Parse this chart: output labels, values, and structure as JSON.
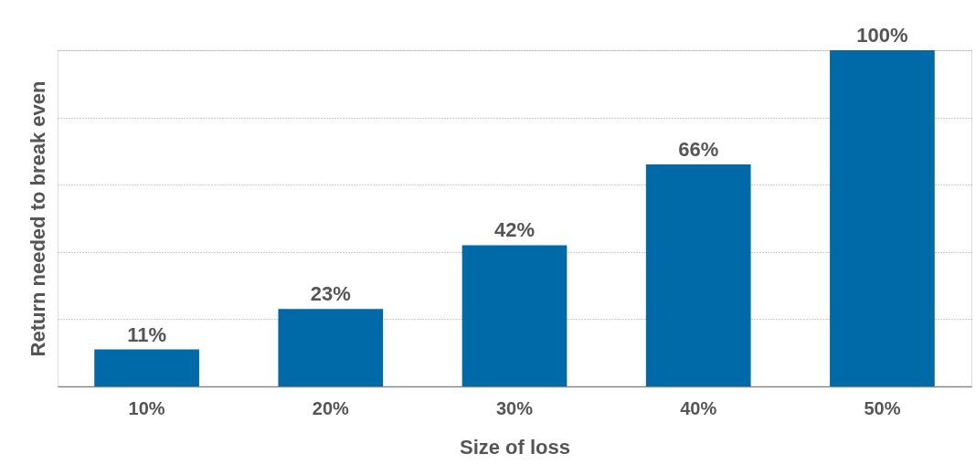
{
  "chart_data": {
    "type": "bar",
    "xlabel": "Size of loss",
    "ylabel": "Return needed to break even",
    "categories": [
      "10%",
      "20%",
      "30%",
      "40%",
      "50%"
    ],
    "values": [
      11,
      23,
      42,
      66,
      100
    ],
    "value_labels": [
      "11%",
      "23%",
      "42%",
      "66%",
      "100%"
    ],
    "color": "#0069a7",
    "ylim": [
      0,
      100
    ],
    "yticks": [
      {
        "value": 0,
        "label": null
      },
      {
        "value": 20,
        "label": null
      },
      {
        "value": 40,
        "label": null
      },
      {
        "value": 60,
        "label": null
      },
      {
        "value": 80,
        "label": null
      },
      {
        "value": 100,
        "label": null
      }
    ],
    "grid": "y",
    "tick_labels": "x"
  }
}
